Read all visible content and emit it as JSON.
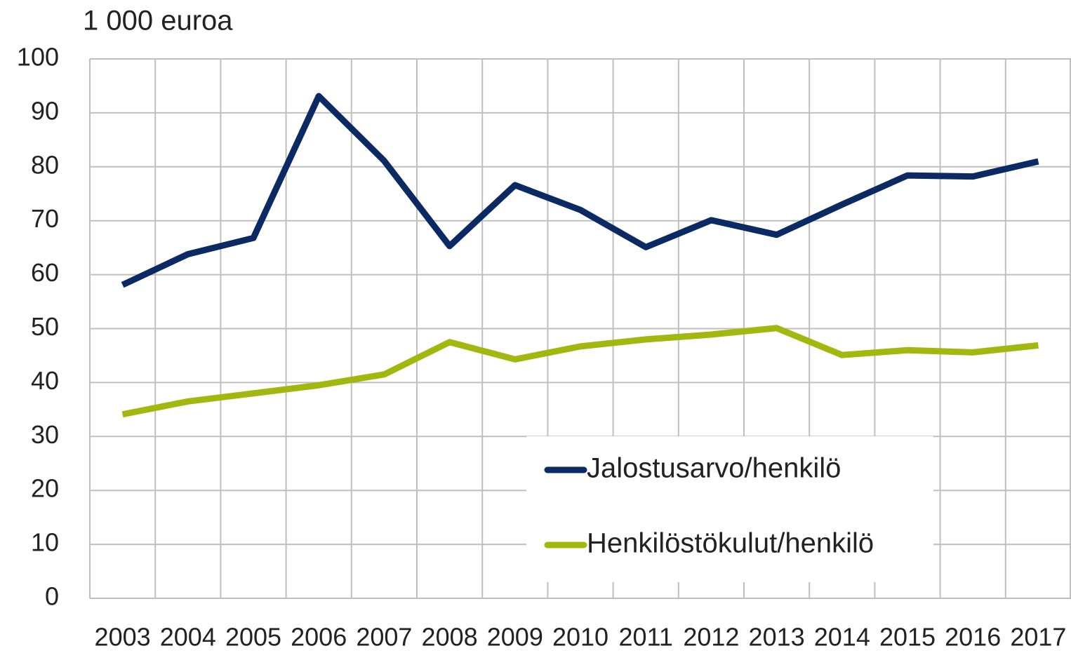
{
  "chart_data": {
    "type": "line",
    "y_label": "1 000 euroa",
    "categories": [
      "2003",
      "2004",
      "2005",
      "2006",
      "2007",
      "2008",
      "2009",
      "2010",
      "2011",
      "2012",
      "2013",
      "2014",
      "2015",
      "2016",
      "2017"
    ],
    "series": [
      {
        "name": "Jalostusarvo/henkilö",
        "color": "#0b2a63",
        "values": [
          58.1,
          63.8,
          66.8,
          93.1,
          81.1,
          65.3,
          76.6,
          72.0,
          65.1,
          70.1,
          67.4,
          73.0,
          78.4,
          78.2,
          81.0
        ]
      },
      {
        "name": "Henkilöstökulut/henkilö",
        "color": "#a2b80e",
        "values": [
          34.1,
          36.5,
          38.0,
          39.5,
          41.5,
          47.5,
          44.3,
          46.7,
          48.0,
          48.9,
          50.1,
          45.1,
          46.0,
          45.6,
          46.9
        ]
      }
    ],
    "ylim": [
      0,
      100
    ],
    "yticks": [
      0,
      10,
      20,
      30,
      40,
      50,
      60,
      70,
      80,
      90,
      100
    ],
    "grid": true,
    "legend": "lower right"
  }
}
